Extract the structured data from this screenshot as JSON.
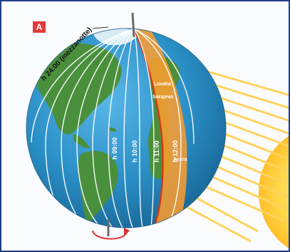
{
  "figure": {
    "badge": "A",
    "midnight_label": "h 24:00 (mezzanotte)",
    "hour_labels": [
      "h 09:00",
      "h 10:00",
      "h 11:00",
      "h 12:00"
    ],
    "places": [
      "Londra",
      "Sarajevo",
      "Accra"
    ]
  },
  "colors": {
    "frame": "#1f3f8a",
    "ocean": "#2a8fc6",
    "land": "#4a8f3c",
    "day_band": "#ff9e2d",
    "meridian": "#ffffff",
    "sun": "#ffd84a",
    "sun_rays": "#ffd35c",
    "rotation_arrow": "#e03030"
  }
}
